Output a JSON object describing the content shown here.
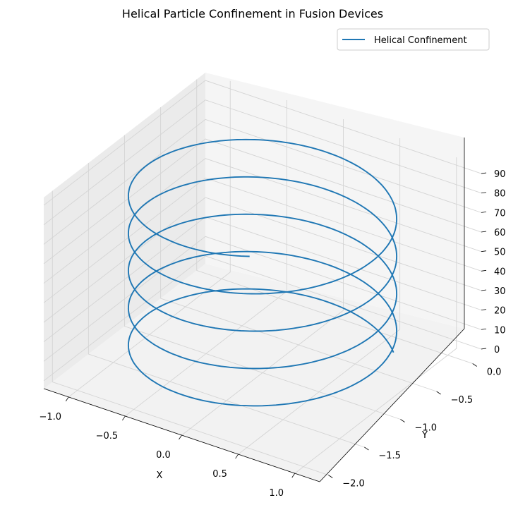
{
  "chart_data": {
    "type": "line",
    "projection": "3d",
    "title": "Helical Particle Confinement in Fusion Devices",
    "xlabel": "X",
    "ylabel": "Y",
    "zlabel": "",
    "legend": {
      "placement": "top-right",
      "entries": [
        "Helical Confinement"
      ]
    },
    "grid": true,
    "series": [
      {
        "name": "Helical Confinement",
        "color": "#1f77b4",
        "curve": "helix",
        "x_center": 0.0,
        "y_center": -1.0,
        "radius": 1.0,
        "turns": 4.7,
        "z_range": [
          0,
          90
        ]
      }
    ],
    "xlim": [
      -1.0,
      1.0
    ],
    "ylim": [
      -2.0,
      0.0
    ],
    "zlim": [
      0,
      90
    ],
    "x_ticks": [
      "−1.0",
      "−0.5",
      "0.0",
      "0.5",
      "1.0"
    ],
    "y_ticks": [
      "−2.0",
      "−1.5",
      "−1.0",
      "−0.5",
      "0.0"
    ],
    "z_ticks": [
      "0",
      "10",
      "20",
      "30",
      "40",
      "50",
      "60",
      "70",
      "80",
      "90"
    ]
  }
}
